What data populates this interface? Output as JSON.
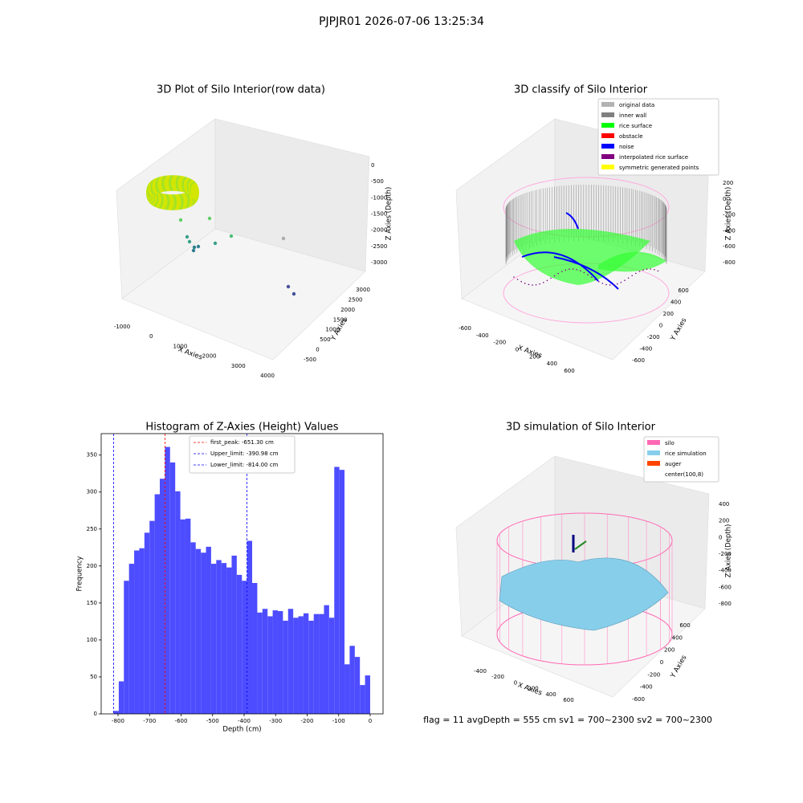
{
  "suptitle": "PJPJR01 2026-07-06 13:25:34",
  "footer": "flag = 11  avgDepth = 555 cm  sv1 = 700~2300  sv2 = 700~2300",
  "chart_data": [
    {
      "type": "scatter3d",
      "title": "3D Plot of Silo Interior(row data)",
      "xlabel": "X Axies",
      "ylabel": "Y Axies",
      "zlabel": "Z Axies (Depth)",
      "xticks": [
        -1000,
        0,
        1000,
        2000,
        3000,
        4000
      ],
      "yticks": [
        -500,
        0,
        500,
        1000,
        1500,
        2000,
        2500,
        3000
      ],
      "zticks": [
        0,
        -500,
        -1000,
        -1500,
        -2000,
        -2500,
        -3000
      ]
    },
    {
      "type": "scatter3d",
      "title": "3D classify of Silo Interior",
      "xlabel": "X Axies",
      "ylabel": "Y Axies",
      "zlabel": "Z Axies (Depth)",
      "xticks": [
        -600,
        -400,
        -200,
        0,
        200,
        400,
        600
      ],
      "yticks": [
        -600,
        -400,
        -200,
        0,
        200,
        400,
        600
      ],
      "zticks": [
        200,
        0,
        -200,
        -400,
        -600,
        -800
      ],
      "series": [
        {
          "name": "original data",
          "color": "#b3b3b3"
        },
        {
          "name": "inner wall",
          "color": "#808080"
        },
        {
          "name": "rice surface",
          "color": "#00ff00"
        },
        {
          "name": "obstacle",
          "color": "#ff0000"
        },
        {
          "name": "noise",
          "color": "#0000ff"
        },
        {
          "name": "interpolated rice surface",
          "color": "#800080"
        },
        {
          "name": "symmetric generated points",
          "color": "#ffff00"
        }
      ]
    },
    {
      "type": "histogram",
      "title": "Histogram of Z-Axies (Height) Values",
      "xlabel": "Depth (cm)",
      "ylabel": "Frequency",
      "color": "#4d4dff",
      "bins": [
        -814,
        -797.72,
        -781.44,
        -765.16,
        -748.88,
        -732.6,
        -716.32,
        -700.04,
        -683.76,
        -667.48,
        -651.2,
        -634.92,
        -618.64,
        -602.36,
        -586.08,
        -569.8,
        -553.52,
        -537.24,
        -520.96,
        -504.68,
        -488.4,
        -472.12,
        -455.84,
        -439.56,
        -423.28,
        -407,
        -390.72,
        -374.44,
        -358.16,
        -341.88,
        -325.6,
        -309.32,
        -293.04,
        -276.76,
        -260.48,
        -244.2,
        -227.92,
        -211.64,
        -195.36,
        -179.08,
        -162.8,
        -146.52,
        -130.24,
        -113.96,
        -97.68,
        -81.4,
        -65.12,
        -48.84,
        -32.56,
        -16.28,
        0
      ],
      "values": [
        4,
        44,
        180,
        203,
        221,
        224,
        245,
        261,
        297,
        318,
        361,
        340,
        301,
        263,
        264,
        232,
        223,
        218,
        226,
        203,
        208,
        204,
        198,
        214,
        188,
        180,
        234,
        177,
        137,
        142,
        132,
        140,
        139,
        126,
        142,
        130,
        132,
        136,
        126,
        135,
        135,
        147,
        130,
        334,
        330,
        67,
        92,
        77,
        39,
        52
      ],
      "xlim": [
        -853.5,
        40.8
      ],
      "ylim": [
        0,
        379
      ],
      "xticks": [
        -800,
        -700,
        -600,
        -500,
        -400,
        -300,
        -200,
        -100,
        0
      ],
      "yticks": [
        0,
        50,
        100,
        150,
        200,
        250,
        300,
        350
      ],
      "lines": [
        {
          "value": -651.3,
          "label": "first_peak: -651.30 cm",
          "color": "#ff0000"
        },
        {
          "value": -390.98,
          "label": "Upper_limit: -390.98 cm",
          "color": "#0000ff"
        },
        {
          "value": -814,
          "label": "Lower_limit: -814.00 cm",
          "color": "#0000ff"
        }
      ]
    },
    {
      "type": "surface3d",
      "title": "3D simulation of Silo Interior",
      "xlabel": "X Axies",
      "ylabel": "Y Axies",
      "zlabel": "Z Axies (Depth)",
      "xticks": [
        -400,
        -200,
        0,
        200,
        400,
        600
      ],
      "yticks": [
        -600,
        -400,
        -200,
        0,
        200,
        400,
        600
      ],
      "zticks": [
        400,
        200,
        0,
        -200,
        -400,
        -600,
        -800
      ],
      "series": [
        {
          "name": "silo",
          "color": "#ff69b4"
        },
        {
          "name": "rice simulation",
          "color": "#87ceeb"
        },
        {
          "name": "auger",
          "color": "#ff4500"
        },
        {
          "name": "center(100,8)",
          "color": "#ffffff"
        }
      ]
    }
  ]
}
